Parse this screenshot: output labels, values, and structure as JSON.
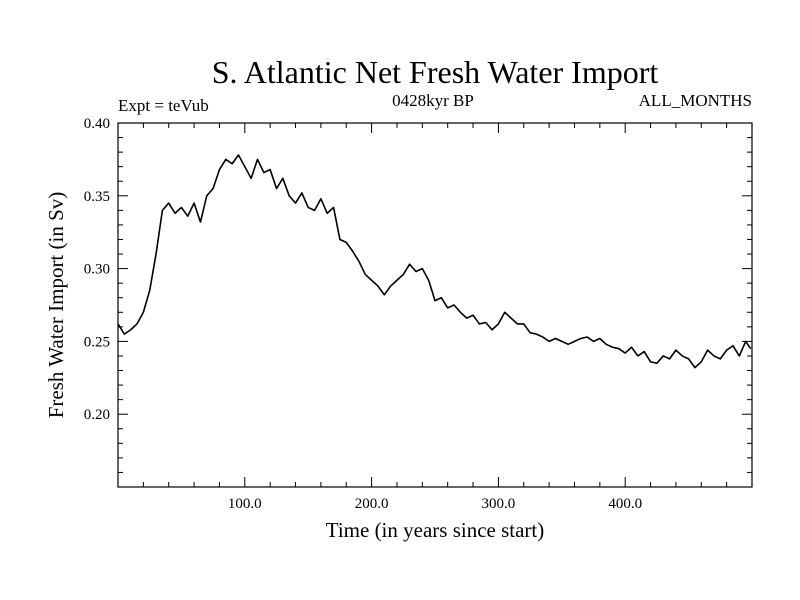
{
  "chart_data": {
    "type": "line",
    "title": "S. Atlantic Net Fresh Water Import",
    "subtitle_left": "Expt = teVub",
    "subtitle_center": "0428kyr BP",
    "subtitle_right": "ALL_MONTHS",
    "xlabel": "Time (in years since start)",
    "ylabel": "Fresh Water Import (in Sv)",
    "xlim": [
      0,
      500
    ],
    "ylim": [
      0.15,
      0.4
    ],
    "x_ticks": [
      100,
      200,
      300,
      400
    ],
    "x_tick_labels": [
      "100.0",
      "200.0",
      "300.0",
      "400.0"
    ],
    "y_ticks": [
      0.2,
      0.25,
      0.3,
      0.35,
      0.4
    ],
    "y_tick_labels": [
      "0.20",
      "0.25",
      "0.30",
      "0.35",
      "0.40"
    ],
    "grid": false,
    "line_color": "#000000",
    "series": [
      {
        "x": [
          0,
          5,
          10,
          15,
          20,
          25,
          30,
          35,
          40,
          45,
          50,
          55,
          60,
          65,
          70,
          75,
          80,
          85,
          90,
          95,
          100,
          105,
          110,
          115,
          120,
          125,
          130,
          135,
          140,
          145,
          150,
          155,
          160,
          165,
          170,
          175,
          180,
          185,
          190,
          195,
          200,
          205,
          210,
          215,
          220,
          225,
          230,
          235,
          240,
          245,
          250,
          255,
          260,
          265,
          270,
          275,
          280,
          285,
          290,
          295,
          300,
          305,
          310,
          315,
          320,
          325,
          330,
          335,
          340,
          345,
          350,
          355,
          360,
          365,
          370,
          375,
          380,
          385,
          390,
          395,
          400,
          405,
          410,
          415,
          420,
          425,
          430,
          435,
          440,
          445,
          450,
          455,
          460,
          465,
          470,
          475,
          480,
          485,
          490,
          495,
          499
        ],
        "y": [
          0.262,
          0.255,
          0.258,
          0.262,
          0.27,
          0.285,
          0.31,
          0.34,
          0.345,
          0.338,
          0.342,
          0.336,
          0.345,
          0.332,
          0.35,
          0.355,
          0.368,
          0.375,
          0.372,
          0.378,
          0.37,
          0.362,
          0.375,
          0.366,
          0.368,
          0.355,
          0.362,
          0.35,
          0.345,
          0.352,
          0.342,
          0.34,
          0.348,
          0.338,
          0.342,
          0.32,
          0.318,
          0.312,
          0.305,
          0.296,
          0.292,
          0.288,
          0.282,
          0.288,
          0.292,
          0.296,
          0.303,
          0.298,
          0.3,
          0.292,
          0.278,
          0.28,
          0.273,
          0.275,
          0.27,
          0.266,
          0.268,
          0.262,
          0.263,
          0.258,
          0.262,
          0.27,
          0.266,
          0.262,
          0.262,
          0.256,
          0.255,
          0.253,
          0.25,
          0.252,
          0.25,
          0.248,
          0.25,
          0.252,
          0.253,
          0.25,
          0.252,
          0.248,
          0.246,
          0.245,
          0.242,
          0.246,
          0.24,
          0.243,
          0.236,
          0.235,
          0.24,
          0.238,
          0.244,
          0.24,
          0.238,
          0.232,
          0.236,
          0.244,
          0.24,
          0.238,
          0.244,
          0.247,
          0.24,
          0.25,
          0.245
        ]
      }
    ]
  }
}
